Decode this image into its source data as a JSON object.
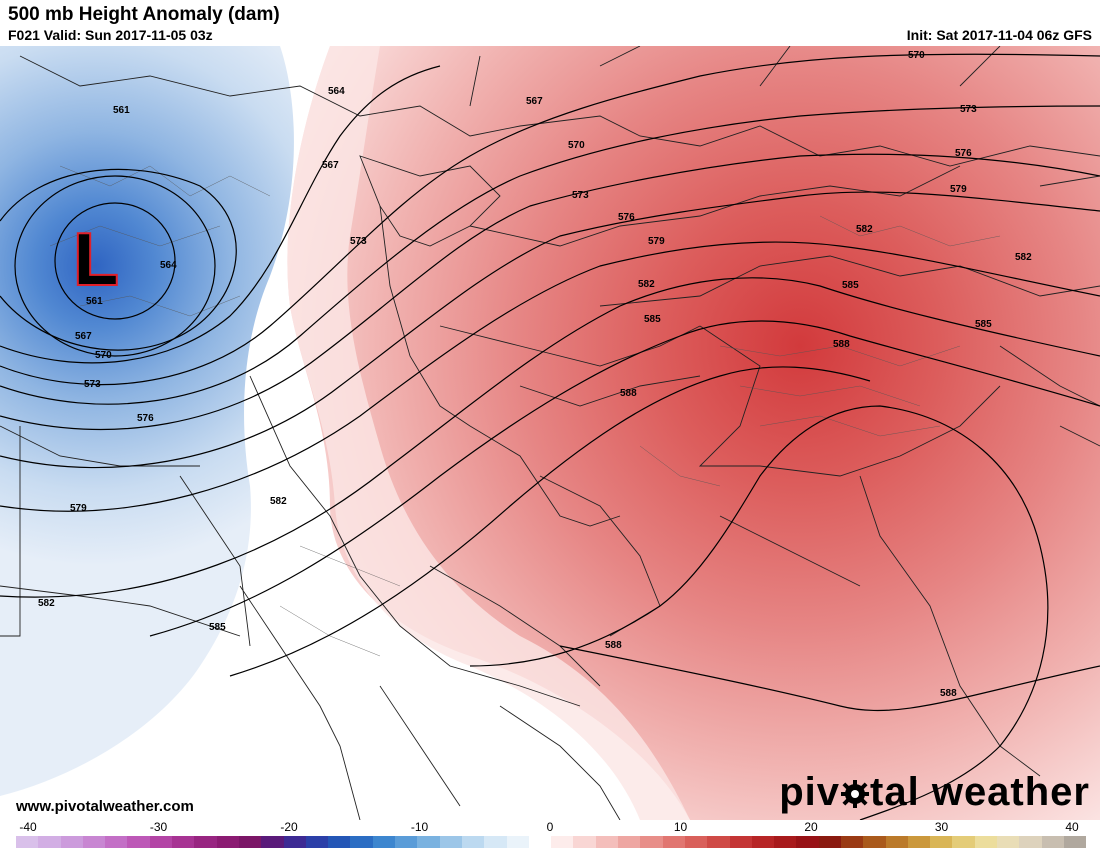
{
  "header": {
    "title": "500 mb Height Anomaly (dam)",
    "valid": "F021 Valid: Sun 2017-11-05 03z",
    "init": "Init: Sat 2017-11-04 06z GFS"
  },
  "footer": {
    "website": "www.pivotalweather.com",
    "brand_left": "piv",
    "brand_right": "tal weather",
    "brand_icon": "gear-icon"
  },
  "map": {
    "low_label": "L",
    "low_label_color": "#000000",
    "low_outline_color": "#e0202a",
    "contour_labels": [
      "561",
      "564",
      "567",
      "570",
      "573",
      "576",
      "579",
      "582",
      "585",
      "588"
    ]
  },
  "colorbar": {
    "labels": [
      "-40",
      "-30",
      "-20",
      "-10",
      "0",
      "10",
      "20",
      "30",
      "40"
    ],
    "colors": [
      "#d9c0ea",
      "#d2aee4",
      "#cc9bdc",
      "#c886d2",
      "#c36fc6",
      "#bd58b7",
      "#b344a5",
      "#a73393",
      "#982581",
      "#8b1b72",
      "#7b1667",
      "#5a1a7a",
      "#3d2a94",
      "#2b3fa8",
      "#2456b6",
      "#2b6dc3",
      "#3d86cf",
      "#5a9cd8",
      "#7ab2e0",
      "#9cc6e8",
      "#bcd9f0",
      "#d6e8f6",
      "#eaf3fa",
      "#ffffff",
      "#fdeceb",
      "#f9d6d4",
      "#f4bebb",
      "#eea6a2",
      "#e88e89",
      "#e17671",
      "#d9605b",
      "#cf4a46",
      "#c43535",
      "#b72526",
      "#a81a1c",
      "#981216",
      "#8a1a10",
      "#9a3a14",
      "#aa5a1c",
      "#bb7a2a",
      "#cb983c",
      "#d9b556",
      "#e4cc78",
      "#ecdd9c",
      "#e9ddb6",
      "#ddd2bc",
      "#c8beb0",
      "#b0a89e"
    ]
  }
}
